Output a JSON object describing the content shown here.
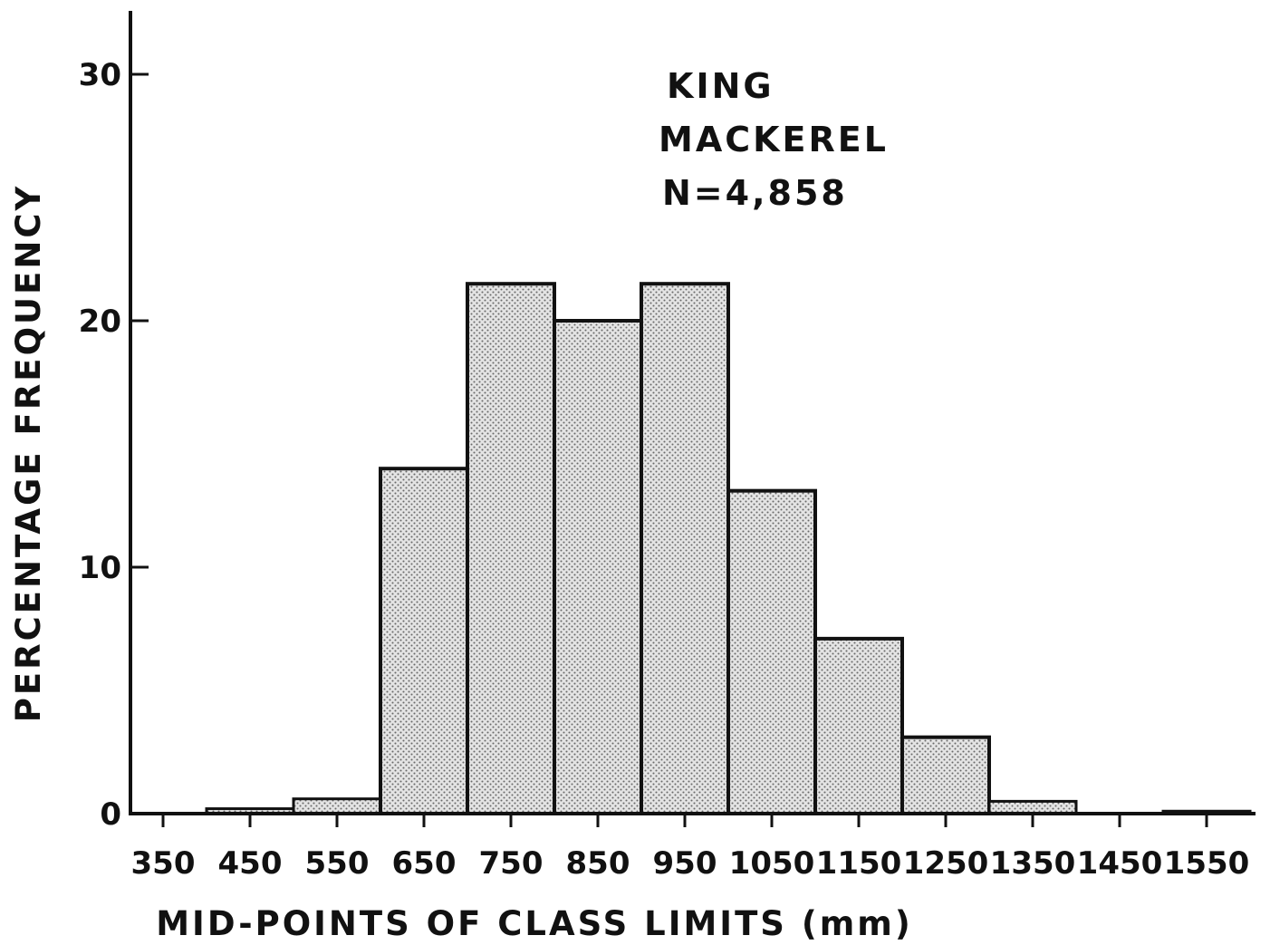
{
  "chart_data": {
    "type": "bar",
    "title_lines": [
      "KING",
      "MACKEREL",
      "N=4,858"
    ],
    "xlabel": "MID-POINTS OF CLASS LIMITS (mm)",
    "ylabel": "PERCENTAGE FREQUENCY",
    "ylim": [
      0,
      30
    ],
    "yticks": [
      0,
      10,
      20,
      30
    ],
    "xticks": [
      350,
      450,
      550,
      650,
      750,
      850,
      950,
      1050,
      1150,
      1250,
      1350,
      1450,
      1550
    ],
    "bin_width": 100,
    "grid": false,
    "bars": [
      {
        "center": 450,
        "value": 0.2
      },
      {
        "center": 550,
        "value": 0.6
      },
      {
        "center": 650,
        "value": 14.0
      },
      {
        "center": 750,
        "value": 21.5
      },
      {
        "center": 850,
        "value": 20.0
      },
      {
        "center": 950,
        "value": 21.5
      },
      {
        "center": 1050,
        "value": 13.1
      },
      {
        "center": 1150,
        "value": 7.1
      },
      {
        "center": 1250,
        "value": 3.1
      },
      {
        "center": 1350,
        "value": 0.5
      },
      {
        "center": 1550,
        "value": 0.1
      }
    ],
    "fill_color": "#e4e4e4",
    "dot_color": "#6a6a6a",
    "line_color": "#111111"
  }
}
